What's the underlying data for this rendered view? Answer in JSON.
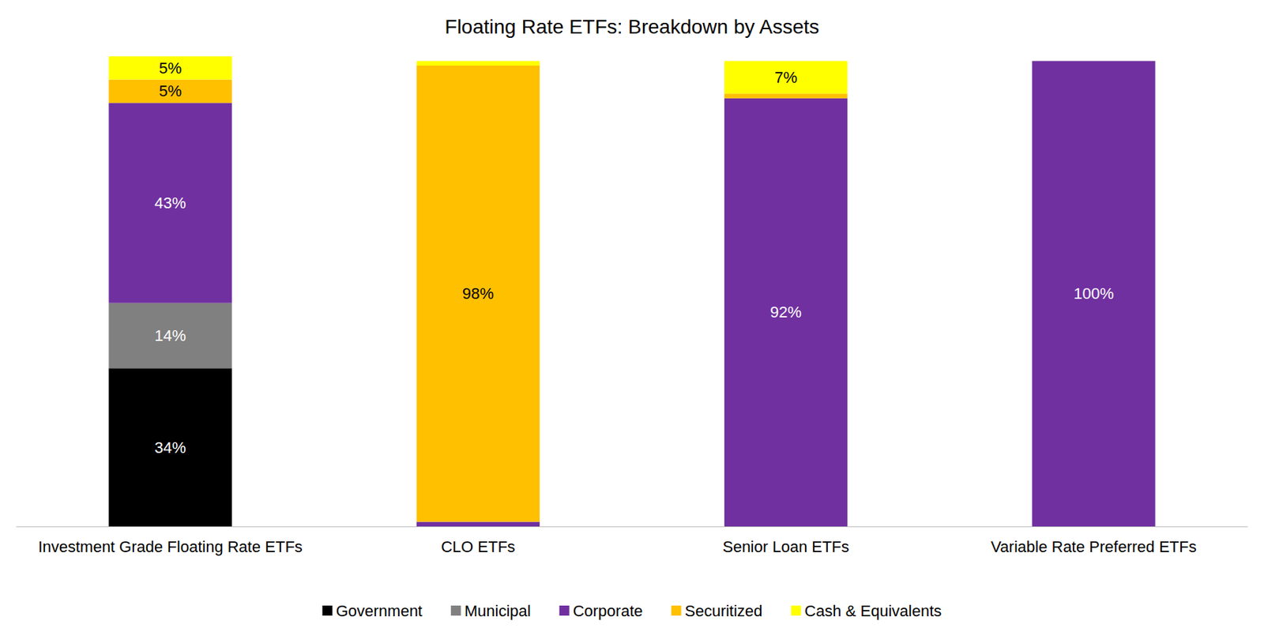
{
  "chart_data": {
    "type": "bar",
    "title": "Floating Rate ETFs: Breakdown by Assets",
    "categories": [
      "Investment Grade Floating Rate ETFs",
      "CLO ETFs",
      "Senior Loan ETFs",
      "Variable Rate Preferred ETFs"
    ],
    "stacked": true,
    "data_labels": true,
    "tick_labels": "x",
    "grid": false,
    "legend": "bottom",
    "ylim": [
      0,
      101
    ],
    "series": [
      {
        "name": "Government",
        "color": "#000000",
        "values": [
          34,
          0,
          0,
          0
        ],
        "value_labels": [
          "34%",
          null,
          null,
          null
        ]
      },
      {
        "name": "Municipal",
        "color": "#808080",
        "values": [
          14,
          0,
          0,
          0
        ],
        "value_labels": [
          "14%",
          null,
          null,
          null
        ]
      },
      {
        "name": "Corporate",
        "color": "#7030a0",
        "values": [
          43,
          1,
          92,
          100
        ],
        "value_labels": [
          "43%",
          null,
          "92%",
          "100%"
        ]
      },
      {
        "name": "Securitized",
        "color": "#ffc000",
        "values": [
          5,
          98,
          1,
          0
        ],
        "value_labels": [
          "5%",
          "98%",
          null,
          null
        ]
      },
      {
        "name": "Cash & Equivalents",
        "color": "#ffff00",
        "values": [
          5,
          1,
          7,
          0
        ],
        "value_labels": [
          "5%",
          null,
          "7%",
          null
        ]
      }
    ]
  }
}
